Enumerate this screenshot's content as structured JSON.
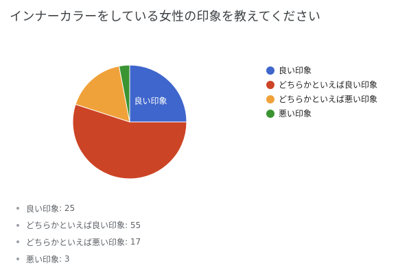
{
  "chart_data": {
    "type": "pie",
    "title": "インナーカラーをしている女性の印象を教えてください",
    "categories": [
      "良い印象",
      "どちらかといえば良い印象",
      "どちらかといえば悪い印象",
      "悪い印象"
    ],
    "values": [
      25,
      55,
      17,
      3
    ],
    "colors": [
      "#3f66cc",
      "#cc4426",
      "#f0a23a",
      "#3b9432"
    ],
    "slice_labels": [
      "良い印象",
      "",
      "",
      ""
    ],
    "legend_position": "right"
  },
  "data_list": {
    "separator": ": ",
    "items": [
      {
        "label": "良い印象",
        "value": "25"
      },
      {
        "label": "どちらかといえば良い印象",
        "value": "55"
      },
      {
        "label": "どちらかといえば悪い印象",
        "value": "17"
      },
      {
        "label": "悪い印象",
        "value": "3"
      }
    ]
  }
}
